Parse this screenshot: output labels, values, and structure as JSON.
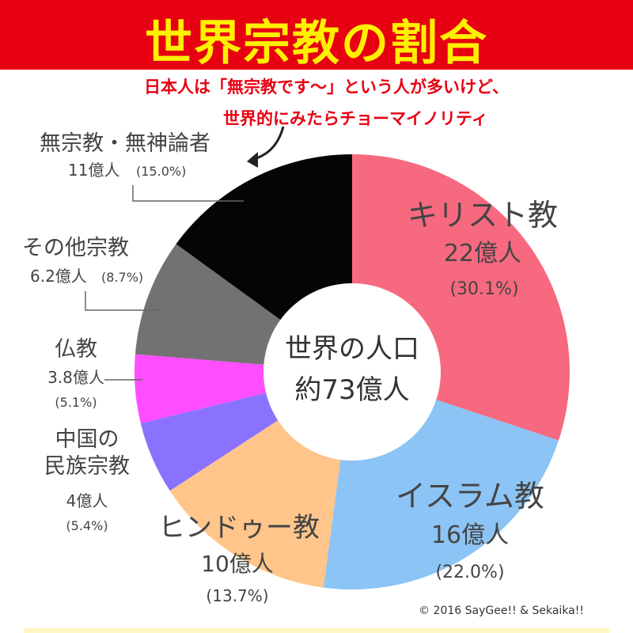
{
  "header": {
    "title": "世界宗教の割合",
    "note_line1": "日本人は「無宗教です～」という人が多いけど、",
    "note_line2": "世界的にみたらチョーマイノリティ"
  },
  "chart_data": {
    "type": "pie",
    "center_label_line1": "世界の人口",
    "center_label_line2": "約73億人",
    "slices": [
      {
        "name": "キリスト教",
        "value_label": "22億人",
        "percent_label": "(30.1%)",
        "percent": 30.1,
        "color": "#f7697f"
      },
      {
        "name": "イスラム教",
        "value_label": "16億人",
        "percent_label": "(22.0%)",
        "percent": 22.0,
        "color": "#8cc4f5"
      },
      {
        "name": "ヒンドゥー教",
        "value_label": "10億人",
        "percent_label": "(13.7%)",
        "percent": 13.7,
        "color": "#ffc58a"
      },
      {
        "name": "中国の民族宗教",
        "value_label": "4億人",
        "percent_label": "(5.4%)",
        "percent": 5.4,
        "color": "#8a72ff"
      },
      {
        "name": "仏教",
        "value_label": "3.8億人",
        "percent_label": "(5.1%)",
        "percent": 5.1,
        "color": "#ff4dff"
      },
      {
        "name": "その他宗教",
        "value_label": "6.2億人",
        "percent_label": "(8.7%)",
        "percent": 8.7,
        "color": "#727272"
      },
      {
        "name": "無宗教・無神論者",
        "value_label": "11億人",
        "percent_label": "(15.0%)",
        "percent": 15.0,
        "color": "#050505"
      }
    ]
  },
  "footer": {
    "copyright": "© 2016 SayGee!! & Sekaika!!"
  }
}
